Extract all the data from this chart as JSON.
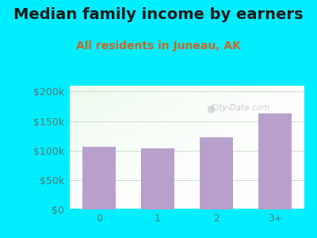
{
  "title": "Median family income by earners",
  "subtitle": "All residents in Juneau, AK",
  "categories": [
    "0",
    "1",
    "2",
    "3+"
  ],
  "values": [
    107000,
    103000,
    122000,
    163000
  ],
  "bar_color": "#b8a0cc",
  "title_color": "#1a1a1a",
  "subtitle_color": "#cc6622",
  "outer_bg_color": "#00eeff",
  "yticks": [
    0,
    50000,
    100000,
    150000,
    200000
  ],
  "ytick_labels": [
    "$0",
    "$50k",
    "$100k",
    "$150k",
    "$200k"
  ],
  "ylim": [
    0,
    210000
  ],
  "watermark": "City-Data.com",
  "title_fontsize": 14,
  "subtitle_fontsize": 10,
  "tick_color": "#557777",
  "tick_fontsize": 9,
  "grid_color": "#ccddcc",
  "plot_bg_top": "#e8f5e8",
  "plot_bg_bottom": "#f8fff8"
}
